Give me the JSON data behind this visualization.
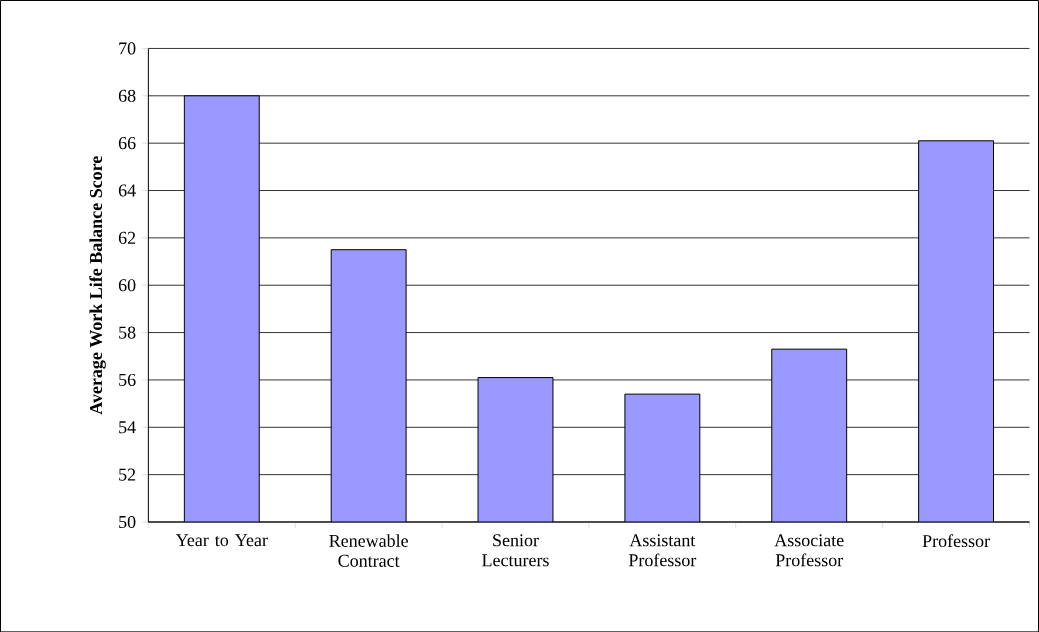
{
  "chart_data": {
    "type": "bar",
    "ylabel": "Average Work Life Balance Score",
    "categories": [
      "Year to Year",
      "Renewable Contract",
      "Senior Lecturers",
      "Assistant Professor",
      "Associate Professor",
      "Professor"
    ],
    "values": [
      68.0,
      61.5,
      56.1,
      55.4,
      57.3,
      66.1
    ],
    "color": "#9999ff",
    "ylim": [
      50,
      70
    ],
    "yticks": [
      50,
      52,
      54,
      56,
      58,
      60,
      62,
      64,
      66,
      68,
      70
    ],
    "grid": "y"
  }
}
